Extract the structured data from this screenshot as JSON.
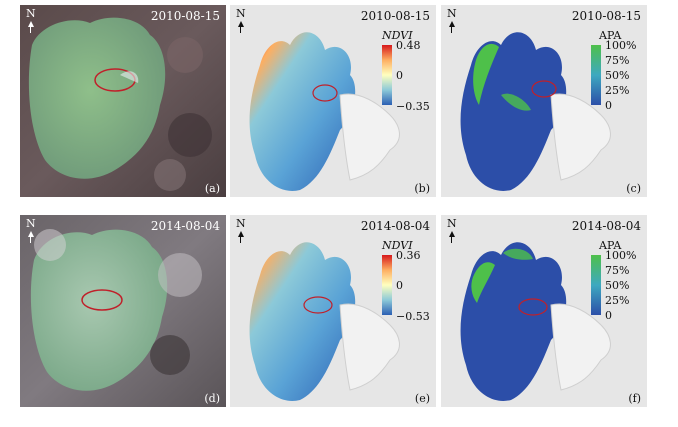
{
  "panels": [
    {
      "id": "a",
      "date": "2010-08-15",
      "label": "(a)",
      "north": "N"
    },
    {
      "id": "b",
      "date": "2010-08-15",
      "label": "(b)",
      "north": "N",
      "legend_title": "NDVI",
      "legend_ticks": [
        "0.48",
        "0",
        "−0.35"
      ]
    },
    {
      "id": "c",
      "date": "2010-08-15",
      "label": "(c)",
      "north": "N",
      "legend_title": "APA",
      "legend_ticks": [
        "100%",
        "75%",
        "50%",
        "25%",
        "0"
      ]
    },
    {
      "id": "d",
      "date": "2014-08-04",
      "label": "(d)",
      "north": "N"
    },
    {
      "id": "e",
      "date": "2014-08-04",
      "label": "(e)",
      "north": "N",
      "legend_title": "NDVI",
      "legend_ticks": [
        "0.36",
        "0",
        "−0.53"
      ]
    },
    {
      "id": "f",
      "date": "2014-08-04",
      "label": "(f)",
      "north": "N",
      "legend_title": "APA",
      "legend_ticks": [
        "100%",
        "75%",
        "50%",
        "25%",
        "0"
      ]
    }
  ],
  "colors": {
    "ndvi_high": "#d7191c",
    "ndvi_mid": "#ffffbf",
    "ndvi_low": "#2b5fb3",
    "apa_high": "#4ec04a",
    "apa_low": "#2c4ea8",
    "land": "#f2f2f2",
    "lake_sat": "#7fa58a"
  }
}
